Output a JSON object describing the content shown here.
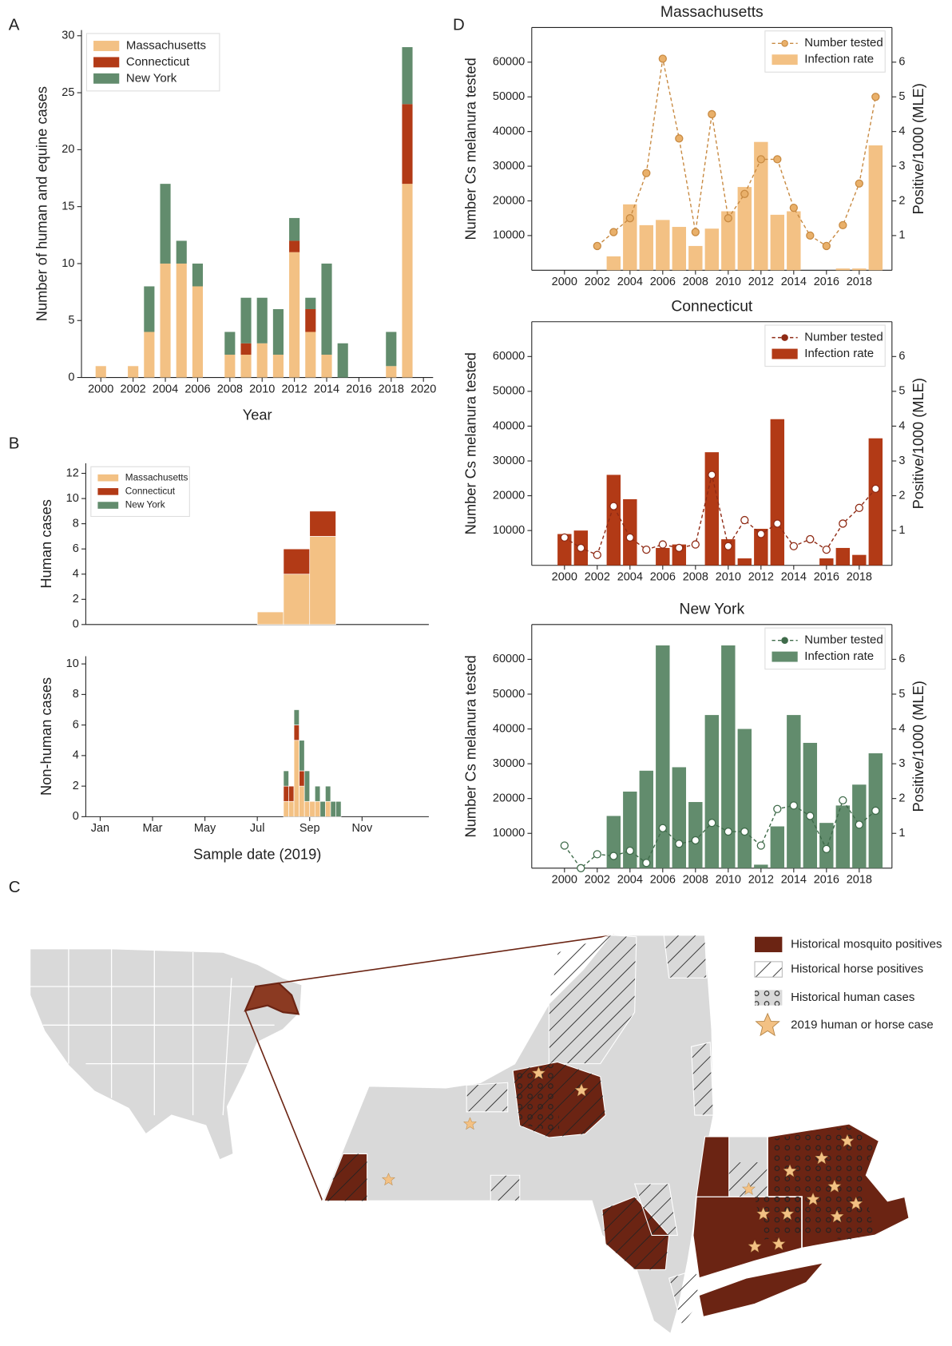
{
  "chart_data": [
    {
      "type": "bar",
      "panel": "A",
      "x_label": "Year",
      "y_label": "Number of human and equine cases",
      "x": [
        2000,
        2001,
        2002,
        2003,
        2004,
        2005,
        2006,
        2007,
        2008,
        2009,
        2010,
        2011,
        2012,
        2013,
        2014,
        2015,
        2016,
        2017,
        2018,
        2019
      ],
      "series": [
        {
          "name": "Massachusetts",
          "color": "#f3c184",
          "values": [
            1,
            0,
            1,
            4,
            10,
            10,
            8,
            0,
            2,
            2,
            3,
            2,
            11,
            4,
            2,
            0,
            0,
            0,
            1,
            17
          ]
        },
        {
          "name": "Connecticut",
          "color": "#b23a16",
          "values": [
            0,
            0,
            0,
            0,
            0,
            0,
            0,
            0,
            0,
            1,
            0,
            0,
            1,
            2,
            0,
            0,
            0,
            0,
            0,
            7
          ]
        },
        {
          "name": "New York",
          "color": "#628c6d",
          "values": [
            0,
            0,
            0,
            4,
            7,
            2,
            2,
            0,
            2,
            4,
            4,
            4,
            2,
            1,
            8,
            3,
            0,
            0,
            3,
            5
          ]
        }
      ],
      "xlim": [
        1998.8,
        2020.6
      ],
      "xticks": [
        2000,
        2002,
        2004,
        2006,
        2008,
        2010,
        2012,
        2014,
        2016,
        2018,
        2020
      ],
      "ylim": [
        0,
        30.5
      ],
      "yticks": [
        0,
        5,
        10,
        15,
        20,
        25,
        30
      ],
      "legend": "upper left"
    },
    {
      "type": "histogram",
      "panel": "B",
      "y_label": "Human cases",
      "bins": [
        7,
        8,
        9,
        10
      ],
      "series": [
        {
          "name": "Massachusetts",
          "color": "#f3c184",
          "values": [
            1,
            4,
            7
          ]
        },
        {
          "name": "Connecticut",
          "color": "#b23a16",
          "values": [
            0,
            2,
            2
          ]
        },
        {
          "name": "New York",
          "color": "#628c6d",
          "values": [
            0,
            0,
            0
          ]
        }
      ],
      "xlim": [
        0.45,
        13.55
      ],
      "ylim": [
        0,
        12.8
      ],
      "yticks": [
        0,
        2,
        4,
        6,
        8,
        10,
        12
      ],
      "legend": "upper left"
    },
    {
      "type": "histogram",
      "y_label": "Non-human cases",
      "x_label": "Sample date (2019)",
      "bins": [
        8.0,
        8.2,
        8.4,
        8.6,
        8.8,
        9.0,
        9.2,
        9.4,
        9.6,
        9.8,
        10.0,
        10.2
      ],
      "series": [
        {
          "color": "#f3c184",
          "values": [
            1,
            1,
            5,
            2,
            1,
            1,
            1,
            0,
            1,
            0,
            0
          ]
        },
        {
          "color": "#b23a16",
          "values": [
            1,
            1,
            1,
            1,
            0,
            0,
            0,
            0,
            0,
            0,
            0
          ]
        },
        {
          "color": "#628c6d",
          "values": [
            1,
            0,
            1,
            2,
            2,
            0,
            1,
            1,
            1,
            1,
            1
          ]
        }
      ],
      "xlim": [
        0.45,
        13.55
      ],
      "xticks": [
        {
          "value": 1,
          "label": "Jan"
        },
        {
          "value": 3,
          "label": "Mar"
        },
        {
          "value": 5,
          "label": "May"
        },
        {
          "value": 7,
          "label": "Jul"
        },
        {
          "value": 9,
          "label": "Sep"
        },
        {
          "value": 11,
          "label": "Nov"
        }
      ],
      "ylim": [
        0,
        10.5
      ],
      "yticks": [
        0,
        2,
        4,
        6,
        8,
        10
      ]
    },
    {
      "type": "combo",
      "panel": "D",
      "title": "Massachusetts",
      "y_label": "Number Cs melanura tested",
      "y2_label": "Positive/1000 (MLE)",
      "x": [
        2000,
        2001,
        2002,
        2003,
        2004,
        2005,
        2006,
        2007,
        2008,
        2009,
        2010,
        2011,
        2012,
        2013,
        2014,
        2015,
        2016,
        2017,
        2018,
        2019
      ],
      "series": [
        {
          "name": "Number tested",
          "kind": "line",
          "color": "#c88a42",
          "marker_fill": "#e9b06a",
          "values": [
            null,
            null,
            7000,
            11000,
            15000,
            28000,
            61000,
            38000,
            11000,
            45000,
            15000,
            22000,
            32000,
            32000,
            18000,
            10000,
            7000,
            13000,
            25000,
            50000
          ]
        },
        {
          "name": "Infection rate",
          "kind": "bar",
          "axis": "y2",
          "color": "#f3c184",
          "values": [
            null,
            null,
            null,
            0.4,
            1.9,
            1.3,
            1.45,
            1.25,
            0.7,
            1.2,
            1.7,
            2.4,
            3.7,
            1.6,
            1.7,
            null,
            null,
            0.05,
            0.05,
            3.6
          ]
        }
      ],
      "xlim": [
        1998,
        2020
      ],
      "xticks": [
        2000,
        2002,
        2004,
        2006,
        2008,
        2010,
        2012,
        2014,
        2016,
        2018
      ],
      "ylim": [
        0,
        70000
      ],
      "yticks": [
        10000,
        20000,
        30000,
        40000,
        50000,
        60000
      ],
      "y2lim": [
        0,
        7
      ],
      "y2ticks": [
        1,
        2,
        3,
        4,
        5,
        6
      ],
      "legend": "upper right"
    },
    {
      "type": "combo",
      "title": "Connecticut",
      "y_label": "Number Cs melanura tested",
      "y2_label": "Positive/1000 (MLE)",
      "x": [
        2000,
        2001,
        2002,
        2003,
        2004,
        2005,
        2006,
        2007,
        2008,
        2009,
        2010,
        2011,
        2012,
        2013,
        2014,
        2015,
        2016,
        2017,
        2018,
        2019
      ],
      "series": [
        {
          "name": "Number tested",
          "kind": "line",
          "color": "#8f2a14",
          "marker_fill": "#ffffff",
          "values": [
            8000,
            5000,
            3000,
            17000,
            8000,
            4500,
            6000,
            5000,
            6000,
            26000,
            5500,
            13000,
            9000,
            12000,
            5500,
            7500,
            4500,
            12000,
            16500,
            22000
          ]
        },
        {
          "name": "Infection rate",
          "kind": "bar",
          "axis": "y2",
          "color": "#b23a16",
          "values": [
            0.9,
            1.0,
            null,
            2.6,
            1.9,
            null,
            0.5,
            0.6,
            null,
            3.25,
            0.75,
            0.2,
            1.05,
            4.2,
            null,
            null,
            0.2,
            0.5,
            0.3,
            3.65
          ]
        }
      ],
      "xlim": [
        1998,
        2020
      ],
      "xticks": [
        2000,
        2002,
        2004,
        2006,
        2008,
        2010,
        2012,
        2014,
        2016,
        2018
      ],
      "ylim": [
        0,
        70000
      ],
      "yticks": [
        10000,
        20000,
        30000,
        40000,
        50000,
        60000
      ],
      "y2lim": [
        0,
        7
      ],
      "y2ticks": [
        1,
        2,
        3,
        4,
        5,
        6
      ],
      "legend": "upper right"
    },
    {
      "type": "combo",
      "title": "New York",
      "y_label": "Number Cs melanura tested",
      "y2_label": "Positive/1000 (MLE)",
      "x": [
        2000,
        2001,
        2002,
        2003,
        2004,
        2005,
        2006,
        2007,
        2008,
        2009,
        2010,
        2011,
        2012,
        2013,
        2014,
        2015,
        2016,
        2017,
        2018,
        2019
      ],
      "series": [
        {
          "name": "Number tested",
          "kind": "line",
          "color": "#3f6b4a",
          "marker_fill": "#ffffff",
          "values": [
            6500,
            0,
            4000,
            3500,
            5000,
            1500,
            11500,
            7000,
            8000,
            13000,
            10500,
            10500,
            6500,
            17000,
            18000,
            15000,
            5500,
            19500,
            12500,
            16500
          ]
        },
        {
          "name": "Infection rate",
          "kind": "bar",
          "axis": "y2",
          "color": "#628c6d",
          "values": [
            null,
            null,
            null,
            1.5,
            2.2,
            2.8,
            6.4,
            2.9,
            1.9,
            4.4,
            6.4,
            4.0,
            0.1,
            1.2,
            4.4,
            3.6,
            1.3,
            1.8,
            2.4,
            3.3
          ]
        }
      ],
      "xlim": [
        1998,
        2020
      ],
      "xticks": [
        2000,
        2002,
        2004,
        2006,
        2008,
        2010,
        2012,
        2014,
        2016,
        2018
      ],
      "ylim": [
        0,
        70000
      ],
      "yticks": [
        10000,
        20000,
        30000,
        40000,
        50000,
        60000
      ],
      "y2lim": [
        0,
        7
      ],
      "y2ticks": [
        1,
        2,
        3,
        4,
        5,
        6
      ],
      "legend": "upper right"
    }
  ],
  "map": {
    "panel": "C",
    "legend": [
      "Historical mosquito positives",
      "Historical horse positives",
      "Historical human cases",
      "2019 human or horse case"
    ]
  }
}
